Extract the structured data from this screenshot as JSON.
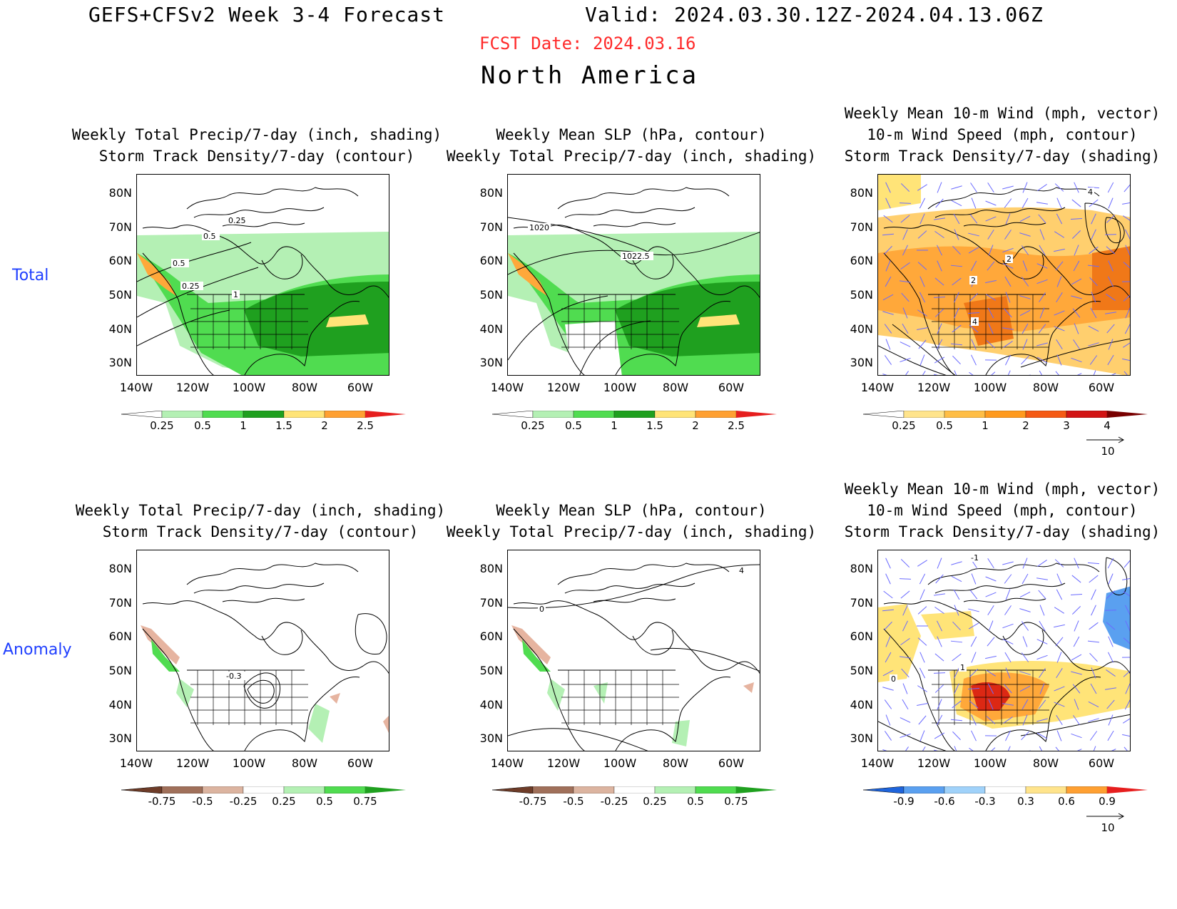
{
  "header": {
    "title_left": "GEFS+CFSv2 Week 3-4 Forecast",
    "title_right": "Valid: 2024.03.30.12Z-2024.04.13.06Z",
    "fcst_date": "FCST Date: 2024.03.16",
    "region": "North America"
  },
  "rows": {
    "total_label": "Total",
    "anomaly_label": "Anomaly"
  },
  "titles": {
    "precip": [
      "Weekly Total Precip/7-day (inch, shading)",
      "Storm Track Density/7-day (contour)"
    ],
    "slp": [
      "Weekly Mean SLP (hPa, contour)",
      "Weekly Total Precip/7-day (inch, shading)"
    ],
    "wind": [
      "Weekly Mean 10-m Wind (mph, vector)",
      "10-m Wind Speed (mph, contour)",
      "Storm Track Density/7-day (shading)"
    ]
  },
  "axes": {
    "lat": [
      "80N",
      "70N",
      "60N",
      "50N",
      "40N",
      "30N"
    ],
    "lon": [
      "140W",
      "120W",
      "100W",
      "80W",
      "60W"
    ]
  },
  "contour_labels": {
    "precip_total": [
      "0.25",
      "0.5",
      "0.5",
      "0.25",
      "1"
    ],
    "slp_total": [
      "1020",
      "1022.5"
    ],
    "wind_total": [
      "2",
      "2",
      "4",
      "4"
    ],
    "precip_anom": [
      "-0.3"
    ],
    "slp_anom": [
      "0",
      "4"
    ],
    "wind_anom": [
      "-1",
      "0",
      "1"
    ]
  },
  "colorbars": {
    "precip_total": {
      "labels": [
        "0.25",
        "0.5",
        "1",
        "1.5",
        "2",
        "2.5"
      ],
      "colors": [
        "#ffffff",
        "#b4f0b4",
        "#50dc50",
        "#1fa01f",
        "#ffe478",
        "#ffa032",
        "#e61e1e"
      ]
    },
    "wind_total": {
      "labels": [
        "0.25",
        "0.5",
        "1",
        "2",
        "3",
        "4"
      ],
      "colors": [
        "#ffffff",
        "#ffe48c",
        "#ffbe46",
        "#ff9a1e",
        "#f55a14",
        "#d21414",
        "#780000"
      ]
    },
    "precip_anom": {
      "labels": [
        "-0.75",
        "-0.5",
        "-0.25",
        "0.25",
        "0.5",
        "0.75"
      ],
      "colors": [
        "#6e3c28",
        "#a0705a",
        "#dcb4a0",
        "#ffffff",
        "#b4f0b4",
        "#50dc50",
        "#1fa01f"
      ]
    },
    "wind_anom": {
      "labels": [
        "-0.9",
        "-0.6",
        "-0.3",
        "0.3",
        "0.6",
        "0.9"
      ],
      "colors": [
        "#1e64dc",
        "#5aa0f0",
        "#a0d2fa",
        "#ffffff",
        "#ffe48c",
        "#ffa032",
        "#e61e1e"
      ]
    }
  },
  "vector_ref": "10",
  "palette": {
    "green_light": "#b4f0b4",
    "green_mid": "#50dc50",
    "green_dark": "#1fa01f",
    "yellow": "#ffe478",
    "orange_light": "#ffcf6e",
    "orange": "#ffa83a",
    "orange_dark": "#f07818",
    "red": "#dc2814",
    "brown": "#e6b4a0",
    "blue": "#5aa0f0",
    "vector": "#6a6aff"
  }
}
